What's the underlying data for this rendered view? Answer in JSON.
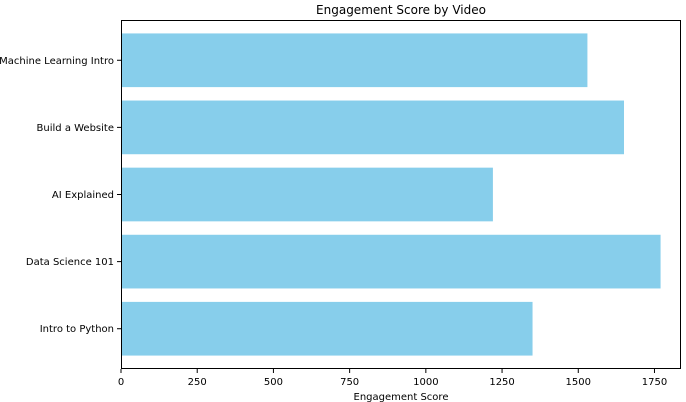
{
  "chart_data": {
    "type": "bar",
    "orientation": "horizontal",
    "title": "Engagement Score by Video",
    "xlabel": "Engagement Score",
    "ylabel": "",
    "categories": [
      "Intro to Python",
      "Data Science 101",
      "AI Explained",
      "Build a Website",
      "Machine Learning Intro"
    ],
    "values": [
      1350,
      1770,
      1220,
      1650,
      1530
    ],
    "xlim": [
      0,
      1837
    ],
    "xticks": [
      0,
      250,
      500,
      750,
      1000,
      1250,
      1500,
      1750
    ],
    "bar_color": "#87ceeb",
    "grid": false,
    "legend": "none"
  }
}
